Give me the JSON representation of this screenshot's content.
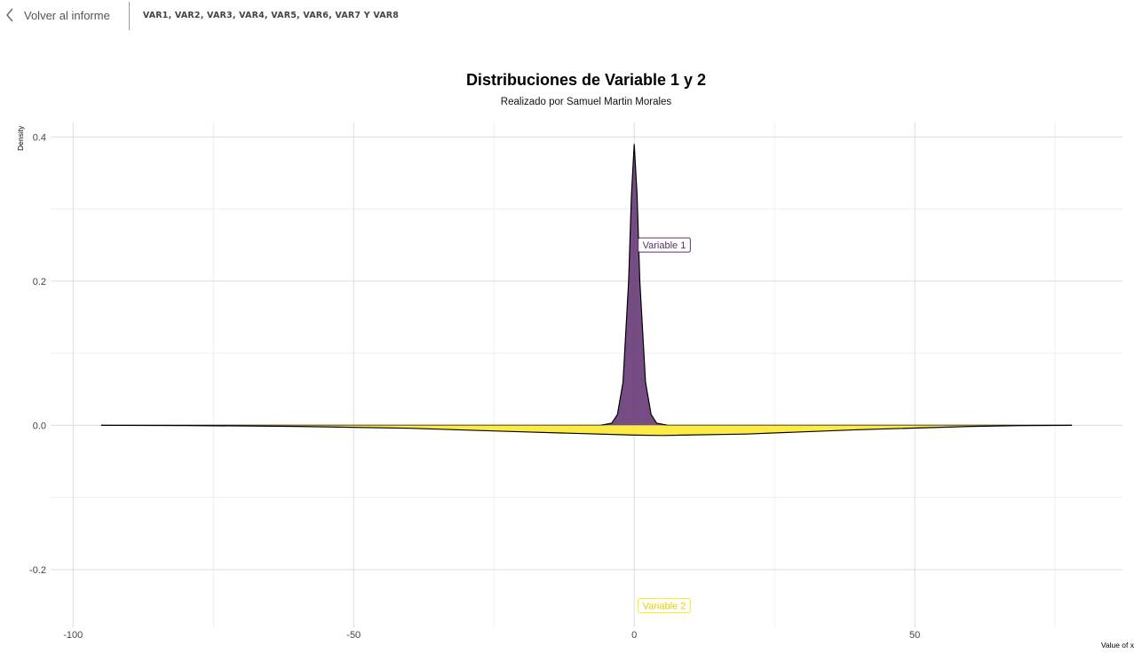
{
  "header": {
    "back_label": "Volver al informe",
    "page_tab": "VAR1, VAR2, VAR3, VAR4, VAR5, VAR6, VAR7 Y VAR8"
  },
  "chart_data": {
    "type": "area",
    "title": "Distribuciones de Variable 1 y 2",
    "subtitle": "Realizado por Samuel Martin Morales",
    "xlabel": "Value of x",
    "ylabel": "Density",
    "xlim": [
      -104,
      87
    ],
    "ylim": [
      -0.28,
      0.42
    ],
    "x_ticks": [
      -100,
      -50,
      0,
      50
    ],
    "y_ticks": [
      -0.2,
      0.0,
      0.2,
      0.4
    ],
    "x_tick_labels": [
      "-100",
      "-50",
      "0",
      "50"
    ],
    "y_tick_labels": [
      "-0.2",
      "0.0",
      "0.2",
      "0.4"
    ],
    "grid": true,
    "series": [
      {
        "name": "Variable 1",
        "color": "#5d2e6e",
        "x": [
          -95,
          -6,
          -4,
          -3,
          -2,
          -1,
          -0.5,
          0,
          0.5,
          1,
          2,
          3,
          4,
          6,
          78
        ],
        "values": [
          0,
          0,
          0.003,
          0.015,
          0.06,
          0.2,
          0.32,
          0.39,
          0.32,
          0.2,
          0.06,
          0.015,
          0.003,
          0,
          0
        ]
      },
      {
        "name": "Variable 2",
        "color": "#fde725",
        "x": [
          -95,
          -80,
          -60,
          -40,
          -20,
          0,
          5,
          20,
          40,
          60,
          70,
          78
        ],
        "values": [
          0,
          -0.0003,
          -0.0015,
          -0.004,
          -0.009,
          -0.0135,
          -0.014,
          -0.012,
          -0.006,
          -0.0015,
          -0.0003,
          0
        ]
      }
    ],
    "annotations": [
      {
        "text": "Variable 1",
        "x": 0.7,
        "y": 0.25,
        "color": "#5d2e6e"
      },
      {
        "text": "Variable 2",
        "x": 0.7,
        "y": -0.25,
        "color": "#fde725"
      }
    ]
  }
}
